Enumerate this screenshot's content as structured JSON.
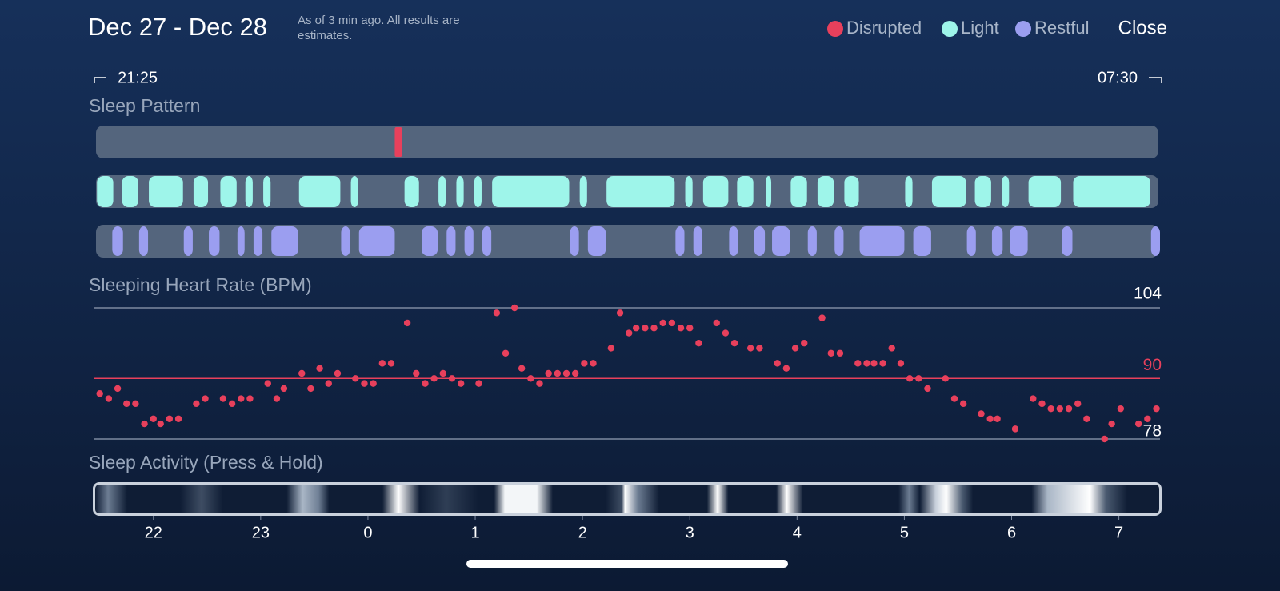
{
  "header": {
    "title": "Dec 27 - Dec 28",
    "note": "As of 3 min ago. All results are estimates.",
    "close": "Close"
  },
  "chart_data": [
    {
      "type": "timeline",
      "title": "Sleep Pattern",
      "start_label": "21:25",
      "end_label": "07:30",
      "xlim": [
        -153,
        443
      ],
      "series": [
        {
          "name": "Disrupted",
          "color": "#e8405c",
          "starts": [
            15
          ],
          "ends": [
            19
          ]
        },
        {
          "name": "Light",
          "color": "#9ef5ea",
          "starts": [
            -152,
            -138,
            -123,
            -98,
            -83,
            -69,
            -59,
            -39,
            -10,
            20,
            39,
            49,
            59,
            69,
            118,
            133,
            177,
            187,
            206,
            222,
            236,
            251,
            266,
            300,
            315,
            339,
            354,
            369,
            394
          ],
          "ends": [
            -142,
            -128,
            -103,
            -89,
            -73,
            -64,
            -54,
            -15,
            -5,
            29,
            44,
            54,
            64,
            113,
            123,
            172,
            182,
            202,
            216,
            226,
            246,
            261,
            275,
            305,
            335,
            349,
            359,
            388,
            438
          ]
        },
        {
          "name": "Restful",
          "color": "#9b9ef0",
          "starts": [
            -143,
            -128,
            -103,
            -89,
            -73,
            -64,
            -54,
            -15,
            -5,
            30,
            44,
            54,
            64,
            113,
            123,
            172,
            182,
            202,
            216,
            226,
            246,
            261,
            275,
            305,
            335,
            349,
            359,
            388,
            438
          ],
          "ends": [
            -137,
            -123,
            -98,
            -83,
            -69,
            -59,
            -39,
            -10,
            15,
            39,
            49,
            59,
            69,
            118,
            133,
            177,
            187,
            207,
            222,
            236,
            251,
            266,
            300,
            315,
            340,
            355,
            369,
            394,
            443
          ]
        }
      ]
    },
    {
      "type": "scatter",
      "title": "Sleeping Heart Rate (BPM)",
      "color": "#e8405c",
      "xlim": [
        -153,
        443
      ],
      "ylim": [
        78,
        104
      ],
      "yticks": [
        78,
        104
      ],
      "reference": {
        "value": 90,
        "color": "#e8405c"
      },
      "x": [
        -150,
        -145,
        -140,
        -135,
        -130,
        -125,
        -120,
        -116,
        -111,
        -106,
        -96,
        -91,
        -81,
        -76,
        -71,
        -66,
        -56,
        -51,
        -47,
        -37,
        -32,
        -27,
        -22,
        -17,
        -7,
        -2,
        3,
        8,
        13,
        22,
        27,
        32,
        37,
        42,
        47,
        52,
        62,
        72,
        77,
        82,
        86,
        91,
        96,
        101,
        106,
        111,
        116,
        121,
        126,
        136,
        141,
        146,
        150,
        155,
        160,
        165,
        170,
        175,
        180,
        185,
        195,
        200,
        205,
        214,
        219,
        229,
        234,
        239,
        244,
        254,
        259,
        264,
        274,
        279,
        283,
        288,
        293,
        298,
        303,
        308,
        313,
        323,
        328,
        333,
        343,
        348,
        352,
        362,
        372,
        377,
        382,
        387,
        392,
        397,
        402,
        412,
        416,
        421,
        431,
        436,
        441
      ],
      "y": [
        87,
        86,
        88,
        85,
        85,
        81,
        82,
        81,
        82,
        82,
        85,
        86,
        86,
        85,
        86,
        86,
        89,
        86,
        88,
        91,
        88,
        92,
        89,
        91,
        90,
        89,
        89,
        93,
        93,
        101,
        91,
        89,
        90,
        91,
        90,
        89,
        89,
        103,
        95,
        104,
        92,
        90,
        89,
        91,
        91,
        91,
        91,
        93,
        93,
        96,
        103,
        99,
        100,
        100,
        100,
        101,
        101,
        100,
        100,
        97,
        101,
        99,
        97,
        96,
        96,
        93,
        92,
        96,
        97,
        102,
        95,
        95,
        93,
        93,
        93,
        93,
        96,
        93,
        90,
        90,
        88,
        90,
        86,
        85,
        83,
        82,
        82,
        80,
        86,
        85,
        84,
        84,
        84,
        85,
        82,
        78,
        81,
        84,
        81,
        82,
        84
      ]
    },
    {
      "type": "heatstrip",
      "title": "Sleep Activity (Press & Hold)",
      "xlim": [
        -153,
        443
      ],
      "xticks": [
        {
          "value": -120,
          "label": "22"
        },
        {
          "value": -60,
          "label": "23"
        },
        0,
        {
          "value": 60,
          "label": "1"
        },
        {
          "value": 120,
          "label": "2"
        },
        {
          "value": 180,
          "label": "3"
        },
        {
          "value": 240,
          "label": "4"
        },
        {
          "value": 300,
          "label": "5"
        },
        {
          "value": 360,
          "label": "6"
        },
        {
          "value": 420,
          "label": "7"
        }
      ]
    }
  ]
}
